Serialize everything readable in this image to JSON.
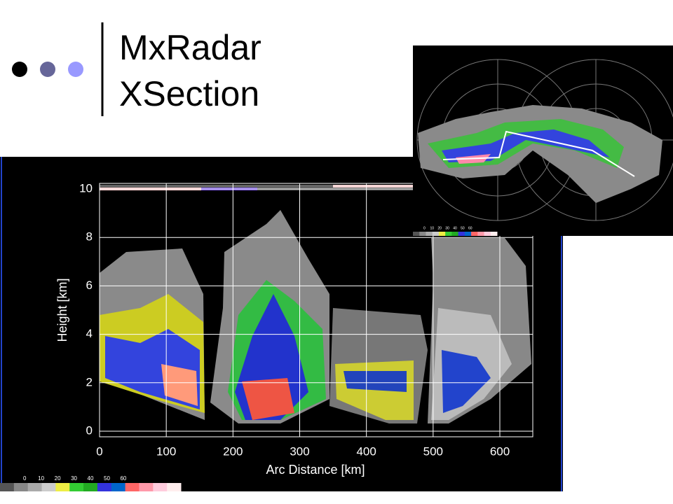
{
  "slide": {
    "title": [
      "MxRadar",
      "XSection"
    ],
    "xsection": {
      "y_label": "Height [km]",
      "x_label": "Arc Distance [km]",
      "yticks": [
        0,
        2,
        4,
        6,
        8,
        10
      ],
      "xticks": [
        0,
        100,
        200,
        300,
        400,
        500,
        600
      ],
      "colorbar": [
        0,
        10,
        20,
        30,
        40,
        50,
        60
      ]
    },
    "inset": {
      "colorbar": [
        0,
        10,
        20,
        30,
        40,
        50,
        60
      ]
    }
  }
}
